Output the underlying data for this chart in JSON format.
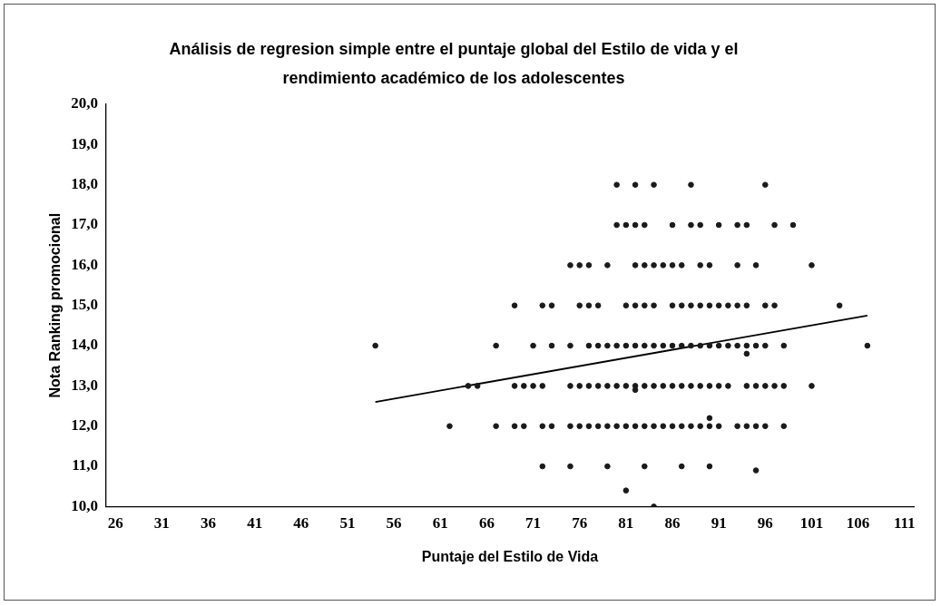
{
  "chart_data": {
    "type": "scatter",
    "title": "Análisis de regresion simple entre el puntaje global del Estilo de vida y el rendimiento académico de los adolescentes",
    "xlabel": "Puntaje del Estilo de Vida",
    "ylabel": "Nota Ranking promocional",
    "xlim": [
      25,
      112
    ],
    "xticks": [
      26,
      31,
      36,
      41,
      46,
      51,
      56,
      61,
      66,
      71,
      76,
      81,
      86,
      91,
      96,
      101,
      106,
      111
    ],
    "ylim": [
      10,
      20
    ],
    "yticks": [
      {
        "value": 10,
        "label": "10,0"
      },
      {
        "value": 11,
        "label": "11,0"
      },
      {
        "value": 12,
        "label": "12,0"
      },
      {
        "value": 13,
        "label": "13,0"
      },
      {
        "value": 14,
        "label": "14,0"
      },
      {
        "value": 15,
        "label": "15,0"
      },
      {
        "value": 16,
        "label": "16,0"
      },
      {
        "value": 17,
        "label": "17,0"
      },
      {
        "value": 18,
        "label": "18,0"
      },
      {
        "value": 19,
        "label": "19,0"
      },
      {
        "value": 20,
        "label": "20,0"
      }
    ],
    "grid": false,
    "legend": false,
    "series": [
      {
        "type": "scatter",
        "color": "#1a1a1a",
        "marker": "circle",
        "x": [
          80,
          82,
          84,
          88,
          96,
          80,
          81,
          82,
          83,
          86,
          88,
          89,
          91,
          93,
          94,
          97,
          99,
          75,
          76,
          77,
          79,
          82,
          83,
          84,
          85,
          86,
          87,
          89,
          90,
          93,
          95,
          101,
          69,
          72,
          73,
          76,
          77,
          78,
          81,
          82,
          83,
          84,
          86,
          87,
          88,
          89,
          90,
          91,
          92,
          93,
          94,
          96,
          97,
          104,
          54,
          67,
          71,
          73,
          75,
          77,
          78,
          79,
          80,
          81,
          82,
          83,
          84,
          85,
          86,
          87,
          88,
          89,
          90,
          91,
          92,
          93,
          94,
          95,
          96,
          98,
          107,
          94,
          64,
          65,
          69,
          70,
          71,
          72,
          75,
          76,
          77,
          78,
          79,
          80,
          81,
          82,
          83,
          84,
          85,
          86,
          87,
          88,
          89,
          90,
          91,
          92,
          94,
          95,
          96,
          97,
          98,
          101,
          82,
          62,
          67,
          69,
          70,
          72,
          73,
          75,
          76,
          77,
          78,
          79,
          80,
          81,
          82,
          83,
          84,
          85,
          86,
          87,
          88,
          89,
          90,
          91,
          93,
          94,
          95,
          96,
          98,
          90,
          72,
          75,
          79,
          83,
          87,
          90,
          95,
          81,
          84
        ],
        "values": [
          18,
          18,
          18,
          18,
          18,
          17,
          17,
          17,
          17,
          17,
          17,
          17,
          17,
          17,
          17,
          17,
          17,
          16,
          16,
          16,
          16,
          16,
          16,
          16,
          16,
          16,
          16,
          16,
          16,
          16,
          16,
          16,
          15,
          15,
          15,
          15,
          15,
          15,
          15,
          15,
          15,
          15,
          15,
          15,
          15,
          15,
          15,
          15,
          15,
          15,
          15,
          15,
          15,
          15,
          14,
          14,
          14,
          14,
          14,
          14,
          14,
          14,
          14,
          14,
          14,
          14,
          14,
          14,
          14,
          14,
          14,
          14,
          14,
          14,
          14,
          14,
          14,
          14,
          14,
          14,
          14,
          13.8,
          13,
          13,
          13,
          13,
          13,
          13,
          13,
          13,
          13,
          13,
          13,
          13,
          13,
          13,
          13,
          13,
          13,
          13,
          13,
          13,
          13,
          13,
          13,
          13,
          13,
          13,
          13,
          13,
          13,
          13,
          12.9,
          12,
          12,
          12,
          12,
          12,
          12,
          12,
          12,
          12,
          12,
          12,
          12,
          12,
          12,
          12,
          12,
          12,
          12,
          12,
          12,
          12,
          12,
          12,
          12,
          12,
          12,
          12,
          12,
          12.2,
          11,
          11,
          11,
          11,
          11,
          11,
          10.9,
          10.4,
          10
        ]
      },
      {
        "type": "line",
        "color": "#000000",
        "marker": "none",
        "x": [
          54,
          107
        ],
        "values": [
          12.6,
          14.75
        ]
      }
    ]
  }
}
